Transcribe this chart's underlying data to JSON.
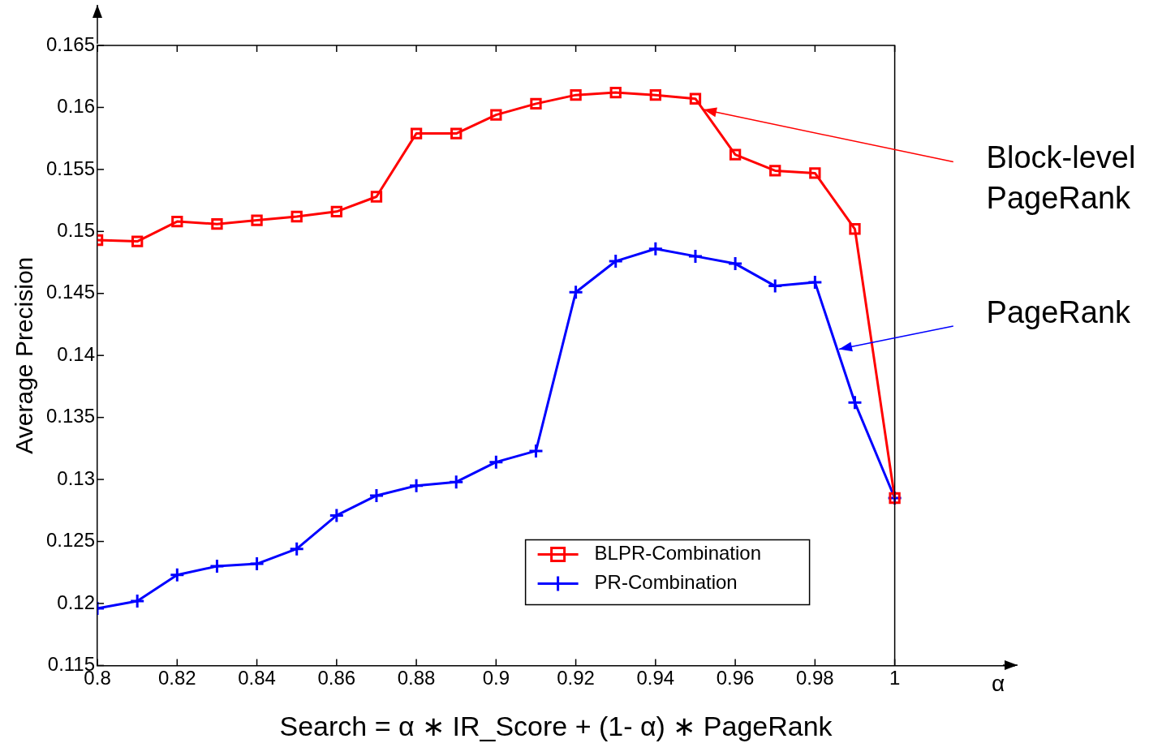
{
  "chart_data": {
    "type": "line",
    "xlabel": "Search = α ∗ IR_Score + (1- α) ∗ PageRank",
    "ylabel": "Average Precision",
    "x": [
      0.8,
      0.81,
      0.82,
      0.83,
      0.84,
      0.85,
      0.86,
      0.87,
      0.88,
      0.89,
      0.9,
      0.91,
      0.92,
      0.93,
      0.94,
      0.95,
      0.96,
      0.97,
      0.98,
      0.99,
      1
    ],
    "series": [
      {
        "name": "BLPR-Combination",
        "color": "#ff0000",
        "marker": "square",
        "values": [
          0.1493,
          0.1492,
          0.1508,
          0.1506,
          0.1509,
          0.1512,
          0.1516,
          0.1528,
          0.1579,
          0.1579,
          0.1594,
          0.1603,
          0.161,
          0.1612,
          0.161,
          0.1607,
          0.1562,
          0.1549,
          0.1547,
          0.1502,
          0.1285
        ]
      },
      {
        "name": "PR-Combination",
        "color": "#0000ff",
        "marker": "cross",
        "values": [
          0.1196,
          0.1202,
          0.1223,
          0.123,
          0.1232,
          0.1244,
          0.1271,
          0.1287,
          0.1295,
          0.1298,
          0.1314,
          0.1323,
          0.1451,
          0.1476,
          0.1486,
          0.148,
          0.1474,
          0.1456,
          0.1459,
          0.1362,
          0.1285
        ]
      }
    ],
    "xlim": [
      0.8,
      1.03
    ],
    "xticks": [
      0.8,
      0.82,
      0.84,
      0.86,
      0.88,
      0.9,
      0.92,
      0.94,
      0.96,
      0.98,
      1
    ],
    "ylim": [
      0.115,
      0.165
    ],
    "yticks": [
      0.115,
      0.12,
      0.125,
      0.13,
      0.135,
      0.14,
      0.145,
      0.15,
      0.155,
      0.16,
      0.165
    ],
    "annotations": [
      "α",
      {
        "text": "Block-level\nPageRank",
        "x": 0.952,
        "y": 0.1598
      },
      {
        "text": "PageRank",
        "x": 0.986,
        "y": 0.1405
      }
    ],
    "grid": false,
    "legend": "bottom right",
    "line_style": "solid"
  }
}
